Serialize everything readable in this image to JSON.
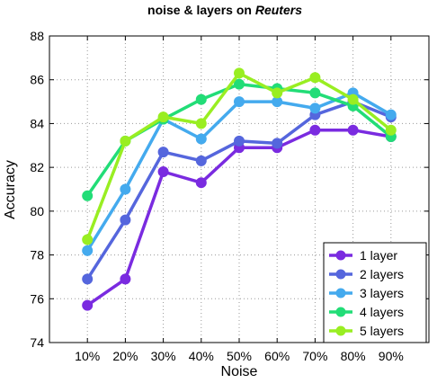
{
  "chart_data": {
    "type": "line",
    "title_prefix": "noise & layers on ",
    "title_emph": "Reuters",
    "xlabel": "Noise",
    "ylabel": "Accuracy",
    "categories": [
      "10%",
      "20%",
      "30%",
      "40%",
      "50%",
      "60%",
      "70%",
      "80%",
      "90%"
    ],
    "ylim": [
      74,
      88
    ],
    "yticks": [
      74,
      76,
      78,
      80,
      82,
      84,
      86,
      88
    ],
    "grid": true,
    "legend_position": "bottom-right",
    "series": [
      {
        "name": "1 layer",
        "color": "#7a2be0",
        "values": [
          75.7,
          76.9,
          81.8,
          81.3,
          82.9,
          82.9,
          83.7,
          83.7,
          83.4
        ]
      },
      {
        "name": "2 layers",
        "color": "#5566dd",
        "values": [
          76.9,
          79.6,
          82.7,
          82.3,
          83.2,
          83.1,
          84.4,
          85.0,
          84.3
        ]
      },
      {
        "name": "3 layers",
        "color": "#44aaee",
        "values": [
          78.2,
          81.0,
          84.2,
          83.3,
          85.0,
          85.0,
          84.7,
          85.4,
          84.4
        ]
      },
      {
        "name": "4 layers",
        "color": "#22dd77",
        "values": [
          80.7,
          83.2,
          84.2,
          85.1,
          85.8,
          85.6,
          85.4,
          84.8,
          83.4
        ]
      },
      {
        "name": "5 layers",
        "color": "#99ee22",
        "values": [
          78.7,
          83.2,
          84.3,
          84.0,
          86.3,
          85.4,
          86.1,
          85.1,
          83.7
        ]
      }
    ]
  }
}
